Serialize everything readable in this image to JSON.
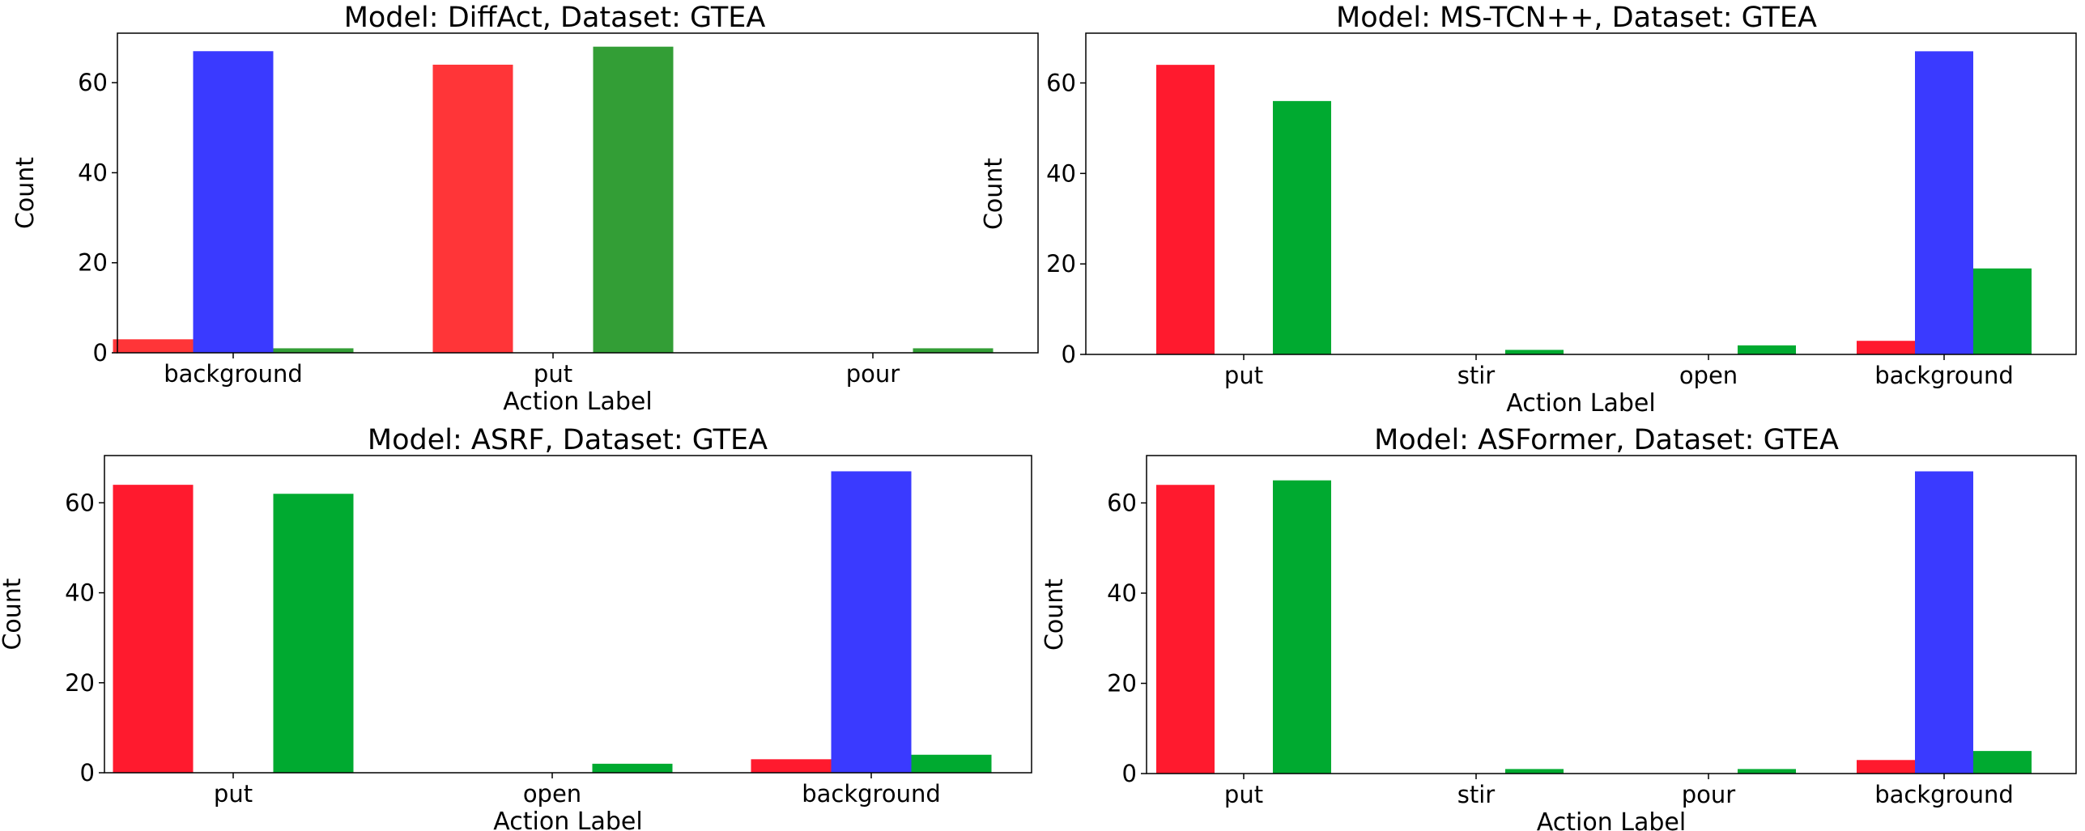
{
  "colors": {
    "red": "#ff1a2e",
    "blue": "#3a3aff",
    "green": "#00aa30",
    "diffact_red": "#ff3538",
    "diffact_green": "#339e36",
    "axis": "#000000"
  },
  "chart_data": [
    {
      "type": "bar",
      "title": "Model: DiffAct, Dataset: GTEA",
      "xlabel": "Action Label",
      "ylabel": "Count",
      "ylim": [
        0,
        71
      ],
      "yticks": [
        "0",
        "20",
        "40",
        "60"
      ],
      "ytick_values": [
        0,
        20,
        40,
        60
      ],
      "categories": [
        "background",
        "put",
        "pour"
      ],
      "series": [
        {
          "name": "red",
          "color": "#ff3538",
          "values": [
            3,
            64,
            0
          ]
        },
        {
          "name": "blue",
          "color": "#3a3aff",
          "values": [
            67,
            0,
            0
          ]
        },
        {
          "name": "green",
          "color": "#339e36",
          "values": [
            1,
            68,
            1
          ]
        }
      ]
    },
    {
      "type": "bar",
      "title": "Model: MS-TCN++, Dataset: GTEA",
      "xlabel": "Action Label",
      "ylabel": "Count",
      "ylim": [
        0,
        71
      ],
      "yticks": [
        "0",
        "20",
        "40",
        "60"
      ],
      "ytick_values": [
        0,
        20,
        40,
        60
      ],
      "categories": [
        "put",
        "stir",
        "open",
        "background"
      ],
      "series": [
        {
          "name": "red",
          "color": "#ff1a2e",
          "values": [
            64,
            0,
            0,
            3
          ]
        },
        {
          "name": "blue",
          "color": "#3a3aff",
          "values": [
            0,
            0,
            0,
            67
          ]
        },
        {
          "name": "green",
          "color": "#00aa30",
          "values": [
            56,
            1,
            2,
            19
          ]
        }
      ]
    },
    {
      "type": "bar",
      "title": "Model: ASRF, Dataset: GTEA",
      "xlabel": "Action Label",
      "ylabel": "Count",
      "ylim": [
        0,
        70.5
      ],
      "yticks": [
        "0",
        "20",
        "40",
        "60"
      ],
      "ytick_values": [
        0,
        20,
        40,
        60
      ],
      "categories": [
        "put",
        "open",
        "background"
      ],
      "series": [
        {
          "name": "red",
          "color": "#ff1a2e",
          "values": [
            64,
            0,
            3
          ]
        },
        {
          "name": "blue",
          "color": "#3a3aff",
          "values": [
            0,
            0,
            67
          ]
        },
        {
          "name": "green",
          "color": "#00aa30",
          "values": [
            62,
            2,
            4
          ]
        }
      ]
    },
    {
      "type": "bar",
      "title": "Model: ASFormer, Dataset: GTEA",
      "xlabel": "Action Label",
      "ylabel": "Count",
      "ylim": [
        0,
        70.5
      ],
      "yticks": [
        "0",
        "20",
        "40",
        "60"
      ],
      "ytick_values": [
        0,
        20,
        40,
        60
      ],
      "categories": [
        "put",
        "stir",
        "pour",
        "background"
      ],
      "series": [
        {
          "name": "red",
          "color": "#ff1a2e",
          "values": [
            64,
            0,
            0,
            3
          ]
        },
        {
          "name": "blue",
          "color": "#3a3aff",
          "values": [
            0,
            0,
            0,
            67
          ]
        },
        {
          "name": "green",
          "color": "#00aa30",
          "values": [
            65,
            1,
            1,
            5
          ]
        }
      ]
    }
  ]
}
